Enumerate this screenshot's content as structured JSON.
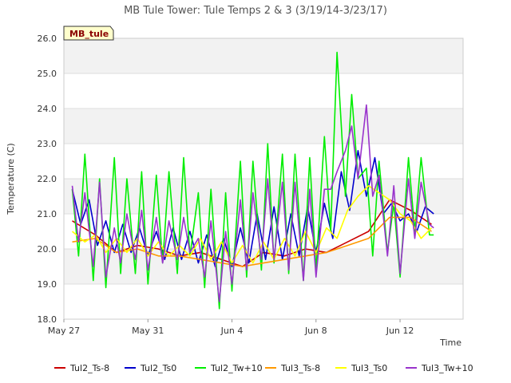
{
  "chart_data": {
    "type": "line",
    "title": "MB Tule Tower: Tule Temps 2 & 3 (3/19/14-3/23/17)",
    "tag": "MB_tule",
    "xlabel": "Time",
    "ylabel": "Temperature (C)",
    "xlim": [
      0,
      19
    ],
    "ylim": [
      18.0,
      26.0
    ],
    "yticks": [
      18.0,
      19.0,
      20.0,
      21.0,
      22.0,
      23.0,
      24.0,
      25.0,
      26.0
    ],
    "yticklabels": [
      "18.0",
      "19.0",
      "20.0",
      "21.0",
      "22.0",
      "23.0",
      "24.0",
      "25.0",
      "26.0"
    ],
    "xticks": [
      0,
      4,
      8,
      12,
      16
    ],
    "xticklabels": [
      "May 27",
      "May 31",
      "Jun 4",
      "Jun 8",
      "Jun 12"
    ],
    "series": [
      {
        "name": "Tul2_Ts-8",
        "color": "#cc0000",
        "x": [
          0.4,
          1.5,
          2.5,
          3.5,
          4.5,
          5.5,
          6.5,
          7.5,
          8.5,
          9.5,
          10.5,
          11.5,
          12.5,
          13.5,
          14.5,
          15.5,
          16.5,
          17.5
        ],
        "y": [
          20.8,
          20.4,
          19.9,
          20.1,
          20.0,
          19.8,
          19.9,
          19.7,
          19.5,
          19.9,
          19.8,
          20.0,
          19.9,
          20.2,
          20.5,
          21.4,
          21.1,
          20.7
        ]
      },
      {
        "name": "Tul2_Ts0",
        "color": "#0000cc",
        "x": [
          0.4,
          0.8,
          1.2,
          1.6,
          2.0,
          2.4,
          2.8,
          3.2,
          3.6,
          4.0,
          4.4,
          4.8,
          5.2,
          5.6,
          6.0,
          6.4,
          6.8,
          7.2,
          7.6,
          8.0,
          8.4,
          8.8,
          9.2,
          9.6,
          10.0,
          10.4,
          10.8,
          11.2,
          11.6,
          12.0,
          12.4,
          12.8,
          13.2,
          13.6,
          14.0,
          14.4,
          14.8,
          15.2,
          15.6,
          16.0,
          16.4,
          16.8,
          17.2,
          17.6
        ],
        "y": [
          21.7,
          20.7,
          21.4,
          20.1,
          20.8,
          19.9,
          20.7,
          19.9,
          20.6,
          19.8,
          20.5,
          19.7,
          20.6,
          19.7,
          20.5,
          19.6,
          20.4,
          19.5,
          20.3,
          19.5,
          20.6,
          19.6,
          21.0,
          19.7,
          21.2,
          19.7,
          21.0,
          19.8,
          21.2,
          19.9,
          21.3,
          20.3,
          22.2,
          21.1,
          22.8,
          21.5,
          22.6,
          21.0,
          21.3,
          20.8,
          21.0,
          20.5,
          21.2,
          21.0
        ]
      },
      {
        "name": "Tul2_Tw+10",
        "color": "#00ee00",
        "x": [
          0.4,
          0.7,
          1.0,
          1.4,
          1.7,
          2.0,
          2.4,
          2.7,
          3.0,
          3.4,
          3.7,
          4.0,
          4.4,
          4.7,
          5.0,
          5.4,
          5.7,
          6.0,
          6.4,
          6.7,
          7.0,
          7.4,
          7.7,
          8.0,
          8.4,
          8.7,
          9.0,
          9.4,
          9.7,
          10.0,
          10.4,
          10.7,
          11.0,
          11.4,
          11.7,
          12.0,
          12.4,
          12.7,
          13.0,
          13.4,
          13.7,
          14.0,
          14.4,
          14.7,
          15.0,
          15.4,
          15.7,
          16.0,
          16.4,
          16.7,
          17.0,
          17.4,
          17.6
        ],
        "y": [
          21.7,
          19.8,
          22.7,
          19.1,
          22.0,
          18.9,
          22.6,
          19.3,
          22.0,
          19.3,
          22.2,
          19.0,
          22.1,
          19.6,
          22.2,
          19.3,
          22.6,
          19.8,
          21.6,
          18.9,
          21.7,
          18.3,
          21.6,
          18.8,
          22.5,
          19.2,
          22.5,
          19.4,
          23.0,
          19.6,
          22.7,
          19.3,
          22.7,
          19.1,
          22.6,
          19.4,
          23.2,
          20.5,
          25.6,
          21.5,
          24.4,
          22.0,
          22.3,
          19.8,
          22.5,
          19.9,
          21.3,
          19.2,
          22.6,
          20.5,
          22.6,
          20.4,
          20.4
        ]
      },
      {
        "name": "Tul3_Ts-8",
        "color": "#ff9900",
        "x": [
          0.4,
          1.5,
          2.5,
          3.5,
          4.5,
          5.5,
          6.5,
          7.5,
          8.5,
          9.5,
          10.5,
          11.5,
          12.5,
          13.5,
          14.5,
          15.5,
          16.5,
          17.5
        ],
        "y": [
          20.2,
          20.3,
          19.9,
          20.0,
          19.8,
          19.8,
          19.7,
          19.6,
          19.5,
          19.6,
          19.7,
          19.8,
          19.9,
          20.1,
          20.3,
          20.9,
          20.9,
          20.5
        ]
      },
      {
        "name": "Tul3_Ts0",
        "color": "#ffff00",
        "x": [
          0.4,
          1.0,
          1.5,
          2.0,
          2.5,
          3.0,
          3.5,
          4.0,
          4.5,
          5.0,
          5.5,
          6.0,
          6.5,
          7.0,
          7.5,
          8.0,
          8.5,
          9.0,
          9.5,
          10.0,
          10.5,
          11.0,
          11.5,
          12.0,
          12.5,
          13.0,
          13.5,
          14.0,
          14.5,
          15.0,
          15.5,
          16.0,
          16.5,
          17.0,
          17.5
        ],
        "y": [
          20.5,
          20.2,
          20.4,
          19.9,
          20.3,
          19.9,
          20.3,
          19.8,
          20.2,
          19.8,
          20.1,
          19.8,
          20.3,
          19.7,
          20.2,
          19.6,
          20.1,
          19.6,
          20.2,
          19.7,
          20.3,
          19.8,
          20.5,
          19.9,
          20.6,
          20.3,
          21.1,
          21.5,
          21.8,
          21.6,
          21.4,
          21.0,
          20.8,
          20.3,
          20.6
        ]
      },
      {
        "name": "Tul3_Tw+10",
        "color": "#9933cc",
        "x": [
          0.4,
          0.7,
          1.0,
          1.4,
          1.7,
          2.0,
          2.4,
          2.7,
          3.0,
          3.4,
          3.7,
          4.0,
          4.4,
          4.7,
          5.0,
          5.4,
          5.7,
          6.0,
          6.4,
          6.7,
          7.0,
          7.4,
          7.7,
          8.0,
          8.4,
          8.7,
          9.0,
          9.4,
          9.7,
          10.0,
          10.4,
          10.7,
          11.0,
          11.4,
          11.7,
          12.0,
          12.4,
          12.7,
          13.0,
          13.4,
          13.7,
          14.0,
          14.4,
          14.7,
          15.0,
          15.4,
          15.7,
          16.0,
          16.4,
          16.7,
          17.0,
          17.4,
          17.6
        ],
        "y": [
          21.8,
          20.2,
          21.6,
          19.5,
          21.9,
          19.2,
          20.6,
          19.6,
          21.0,
          19.7,
          21.1,
          19.4,
          20.9,
          19.6,
          20.8,
          19.7,
          20.9,
          19.9,
          20.3,
          19.2,
          20.8,
          18.5,
          20.5,
          19.0,
          21.4,
          19.4,
          21.6,
          19.7,
          22.0,
          19.7,
          21.9,
          19.4,
          21.9,
          19.1,
          21.7,
          19.2,
          21.7,
          21.7,
          22.2,
          22.8,
          23.5,
          22.0,
          24.1,
          21.5,
          22.1,
          19.8,
          21.8,
          19.3,
          22.0,
          20.3,
          21.9,
          20.7,
          20.6
        ]
      }
    ]
  }
}
